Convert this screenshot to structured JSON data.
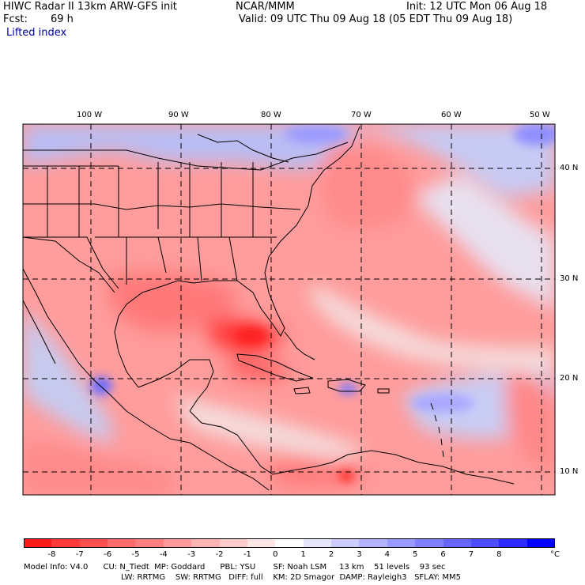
{
  "header": {
    "title": "HIWC Radar II 13km ARW-GFS init",
    "org": "NCAR/MMM",
    "init": "Init: 12 UTC Mon 06 Aug 18",
    "fcst_label": "Fcst:",
    "fcst_value": "69 h",
    "valid": "Valid: 09 UTC Thu 09 Aug 18 (05 EDT Thu 09 Aug 18)",
    "field": "Lifted index"
  },
  "map": {
    "lon_labels": [
      "100 W",
      "90 W",
      "80 W",
      "70 W",
      "60 W",
      "50 W"
    ],
    "lat_labels": [
      "40 N",
      "30 N",
      "20 N",
      "10 N"
    ]
  },
  "colorbar": {
    "ticks": [
      "-8",
      "-7",
      "-6",
      "-5",
      "-4",
      "-3",
      "-2",
      "-1",
      "0",
      "1",
      "2",
      "3",
      "4",
      "5",
      "6",
      "7",
      "8"
    ],
    "unit": "°C",
    "colors": [
      "#ff1a1a",
      "#ff3a3a",
      "#ff5050",
      "#ff6a6a",
      "#ff8080",
      "#ff9a9a",
      "#ffb4b4",
      "#ffcccc",
      "#ffe6e6",
      "#ffffff",
      "#e6e6ff",
      "#ccccff",
      "#b3b3ff",
      "#9999ff",
      "#8080ff",
      "#6666ff",
      "#4d4dff",
      "#2a2aff",
      "#0000ff"
    ]
  },
  "footer": {
    "line1": "Model Info: V4.0      CU: N_Tiedt  MP: Goddard      PBL: YSU       SF: Noah LSM     13 km    51 levels    93 sec",
    "line2": "LW: RRTMG    SW: RRTMG   DIFF: full    KM: 2D Smagor  DAMP: Rayleigh3   SFLAY: MM5"
  }
}
